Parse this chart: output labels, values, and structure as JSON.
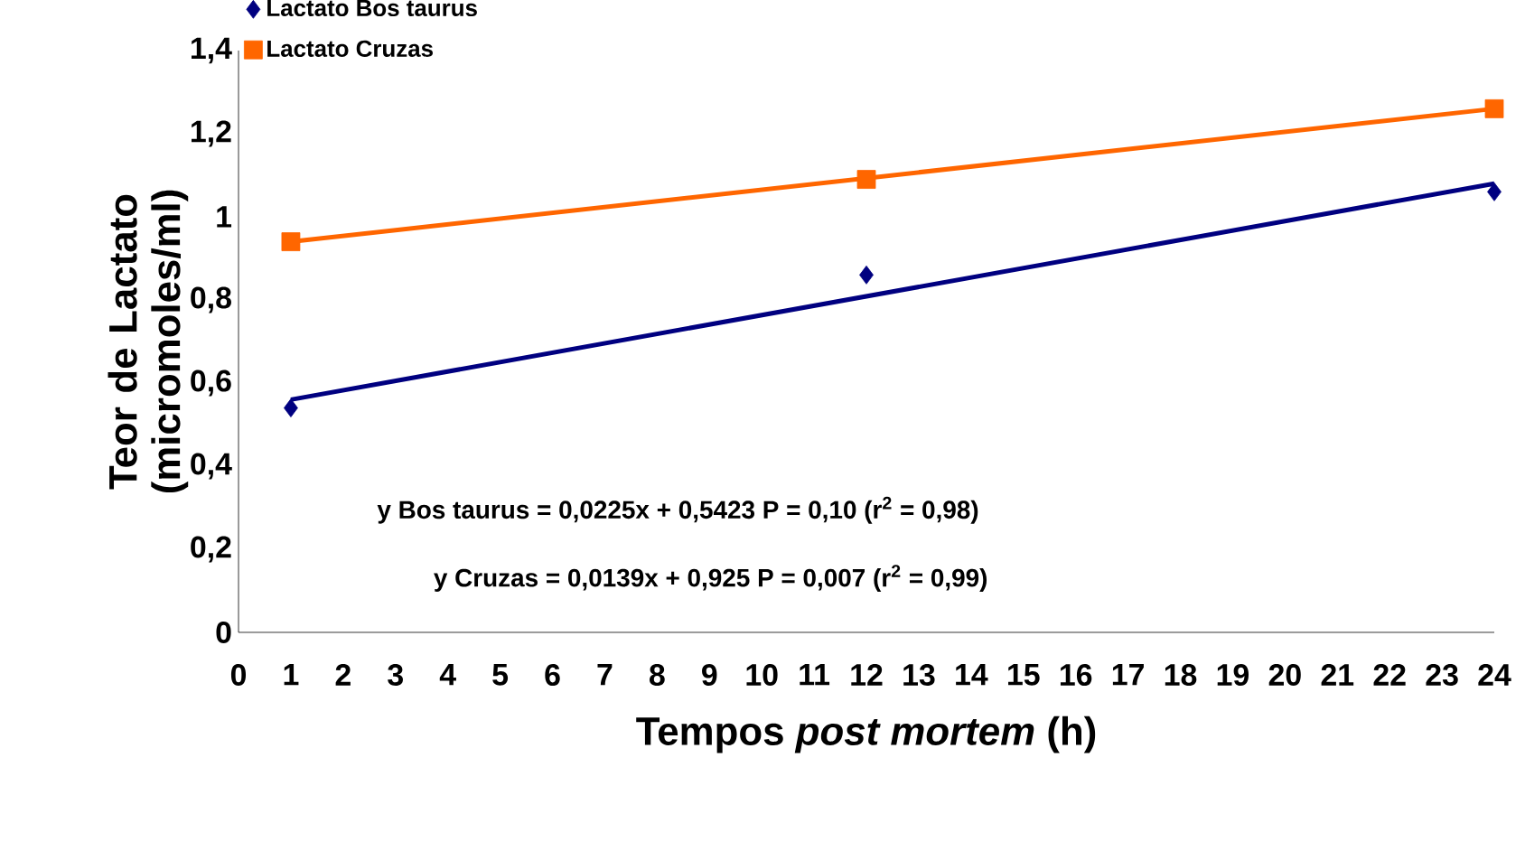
{
  "chart_data": {
    "type": "scatter",
    "xlabel": "Tempos *post mortem* (h)",
    "ylabel": "Teor de Lactato (micromoles/ml)",
    "xlim": [
      0,
      24
    ],
    "xticks": [
      0,
      1,
      2,
      3,
      4,
      5,
      6,
      7,
      8,
      9,
      10,
      11,
      12,
      13,
      14,
      15,
      16,
      17,
      18,
      19,
      20,
      21,
      22,
      23,
      24
    ],
    "ylim": [
      0,
      1.4
    ],
    "yticks": [
      0,
      {
        "value": 0.2,
        "label": "0,2"
      },
      {
        "value": 0.4,
        "label": "0,4"
      },
      {
        "value": 0.6,
        "label": "0,6"
      },
      {
        "value": 0.8,
        "label": "0,8"
      },
      1,
      {
        "value": 1.2,
        "label": "1,2"
      },
      {
        "value": 1.4,
        "label": "1,4"
      }
    ],
    "grid": false,
    "legend": "top left",
    "series": [
      {
        "name": "Lactato Bos taurus",
        "marker": "diamond",
        "color": "#000080",
        "x": [
          1,
          12,
          24
        ],
        "values": [
          0.54,
          0.86,
          1.06
        ]
      },
      {
        "name": "Lactato Cruzas",
        "marker": "square",
        "color": "#ff6600",
        "x": [
          1,
          12,
          24
        ],
        "values": [
          0.94,
          1.09,
          1.26
        ]
      },
      {
        "type": "line",
        "marker": "none",
        "color": "#000080",
        "x": [
          1,
          24
        ],
        "values": [
          0.56,
          1.08
        ]
      },
      {
        "type": "line",
        "marker": "none",
        "color": "#ff6600",
        "x": [
          1,
          24
        ],
        "values": [
          0.94,
          1.26
        ]
      }
    ],
    "annotations": [
      "y Bos taurus = 0,0225x + 0,5423 P = 0,10 (r$^{2}$ = 0,98)",
      "y Cruzas = 0,0139x + 0,925 P = 0,007 (r$^{2}$ = 0,99)"
    ]
  }
}
